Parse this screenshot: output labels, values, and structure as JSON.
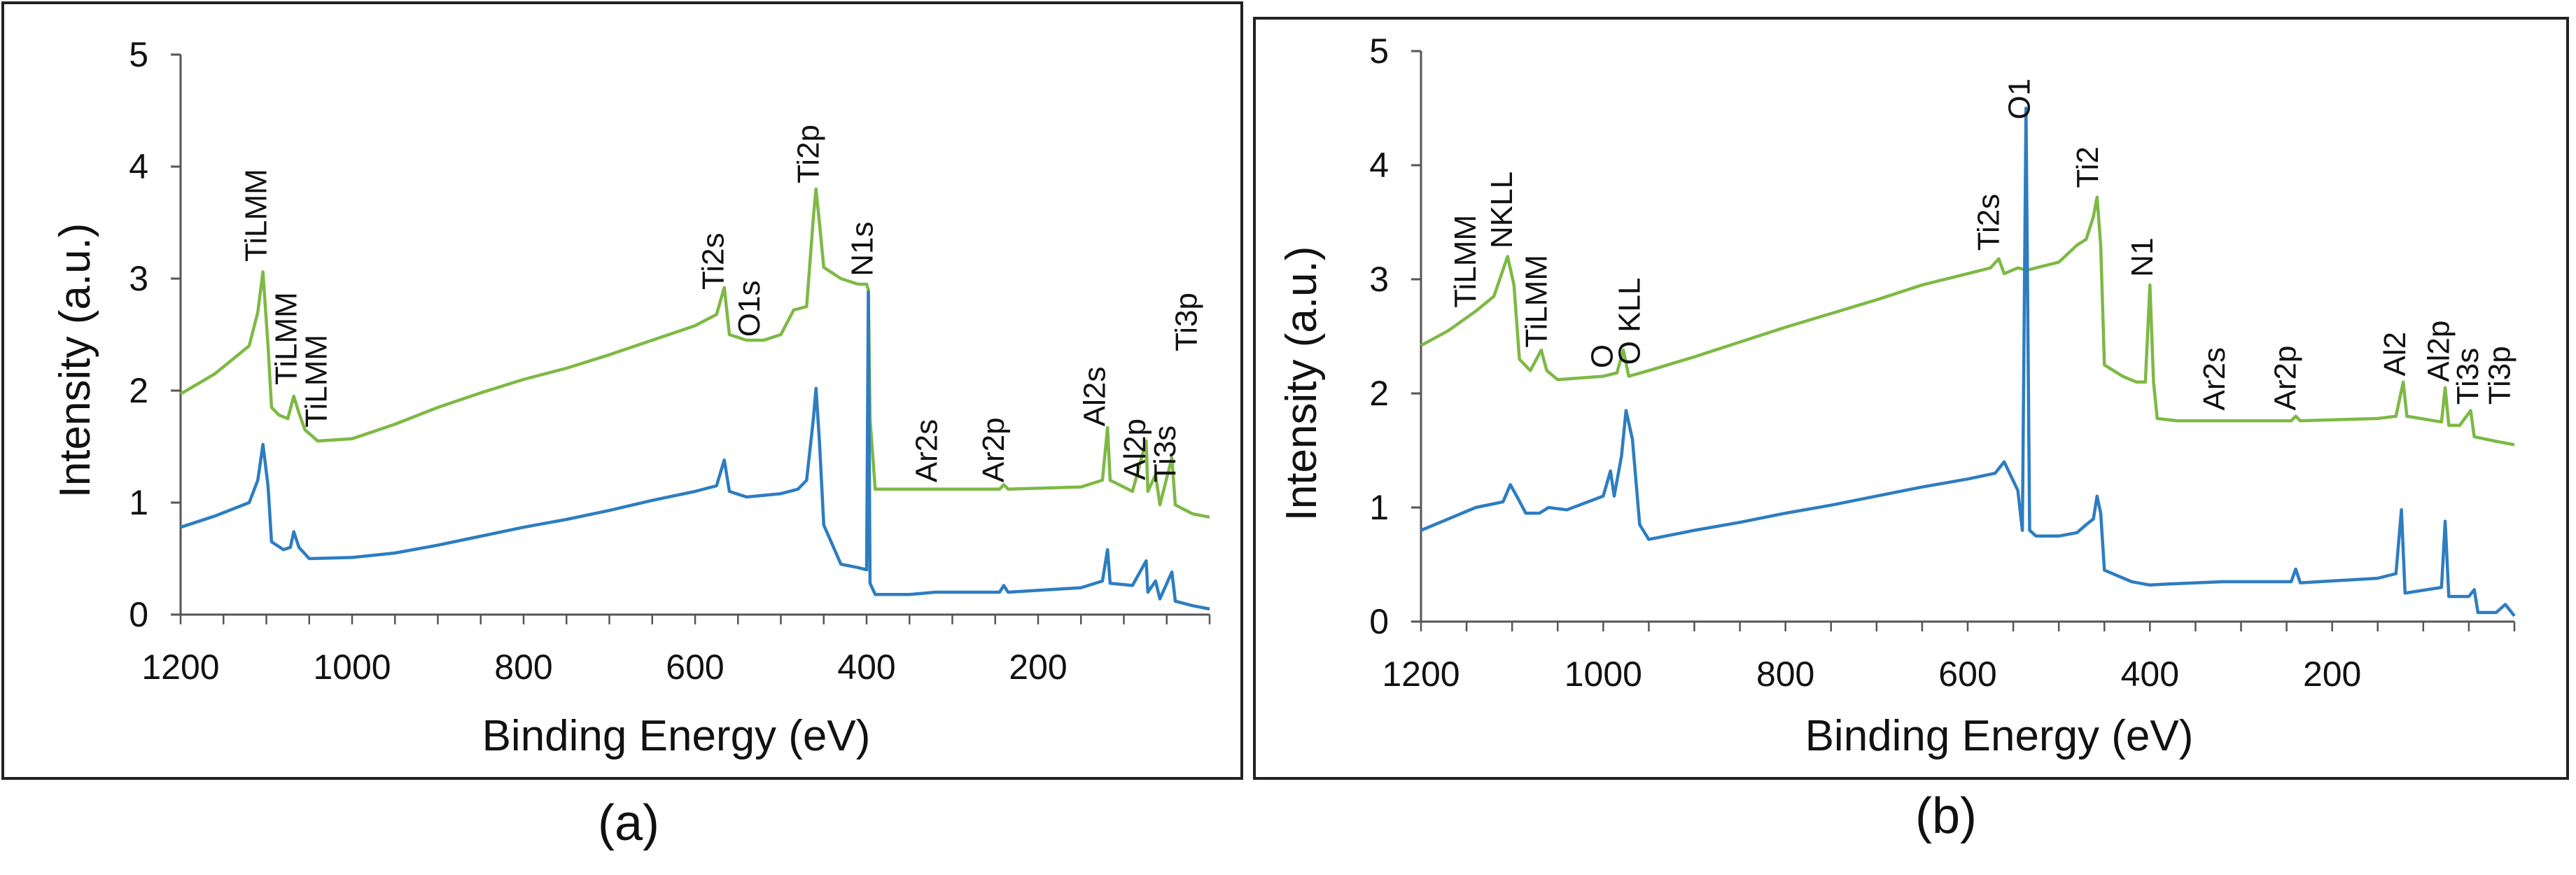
{
  "figure": {
    "captions": [
      "(a)",
      "(b)"
    ]
  },
  "colors": {
    "series_top": "#7DB944",
    "series_bottom": "#2D7DC1",
    "axis": "#555555",
    "frame": "#222222"
  },
  "chart_data": [
    {
      "id": "a",
      "type": "line",
      "title": "",
      "xlabel": "Binding Energy (eV)",
      "ylabel": "Intensity (a.u.)",
      "xlim": [
        1200,
        0
      ],
      "ylim": [
        0,
        5
      ],
      "x_ticks": [
        1200,
        1000,
        800,
        600,
        400,
        200
      ],
      "y_ticks": [
        0,
        1,
        2,
        3,
        4,
        5
      ],
      "grid": false,
      "series": [
        {
          "name": "top",
          "color": "#7DB944",
          "points": [
            [
              1200,
              1.97
            ],
            [
              1160,
              2.15
            ],
            [
              1120,
              2.4
            ],
            [
              1110,
              2.7
            ],
            [
              1104,
              3.06
            ],
            [
              1098,
              2.4
            ],
            [
              1094,
              1.85
            ],
            [
              1085,
              1.78
            ],
            [
              1075,
              1.75
            ],
            [
              1068,
              1.95
            ],
            [
              1062,
              1.8
            ],
            [
              1055,
              1.65
            ],
            [
              1040,
              1.55
            ],
            [
              1000,
              1.57
            ],
            [
              950,
              1.7
            ],
            [
              900,
              1.85
            ],
            [
              850,
              1.98
            ],
            [
              800,
              2.1
            ],
            [
              750,
              2.2
            ],
            [
              700,
              2.32
            ],
            [
              650,
              2.45
            ],
            [
              600,
              2.58
            ],
            [
              575,
              2.68
            ],
            [
              566,
              2.92
            ],
            [
              560,
              2.5
            ],
            [
              540,
              2.45
            ],
            [
              520,
              2.45
            ],
            [
              500,
              2.5
            ],
            [
              485,
              2.72
            ],
            [
              470,
              2.75
            ],
            [
              462,
              3.55
            ],
            [
              459,
              3.8
            ],
            [
              455,
              3.5
            ],
            [
              450,
              3.1
            ],
            [
              430,
              3.0
            ],
            [
              410,
              2.95
            ],
            [
              400,
              2.95
            ],
            [
              398,
              2.9
            ],
            [
              396,
              1.75
            ],
            [
              390,
              1.12
            ],
            [
              370,
              1.12
            ],
            [
              320,
              1.12
            ],
            [
              245,
              1.12
            ],
            [
              240,
              1.16
            ],
            [
              235,
              1.12
            ],
            [
              150,
              1.14
            ],
            [
              125,
              1.2
            ],
            [
              119,
              1.67
            ],
            [
              116,
              1.2
            ],
            [
              90,
              1.1
            ],
            [
              74,
              1.55
            ],
            [
              72,
              1.1
            ],
            [
              63,
              1.25
            ],
            [
              58,
              0.98
            ],
            [
              44,
              1.4
            ],
            [
              40,
              0.98
            ],
            [
              20,
              0.9
            ],
            [
              0,
              0.87
            ]
          ]
        },
        {
          "name": "bottom",
          "color": "#2D7DC1",
          "points": [
            [
              1200,
              0.78
            ],
            [
              1160,
              0.88
            ],
            [
              1120,
              1.0
            ],
            [
              1110,
              1.2
            ],
            [
              1104,
              1.52
            ],
            [
              1098,
              1.15
            ],
            [
              1094,
              0.65
            ],
            [
              1080,
              0.58
            ],
            [
              1072,
              0.6
            ],
            [
              1068,
              0.74
            ],
            [
              1062,
              0.6
            ],
            [
              1050,
              0.5
            ],
            [
              1000,
              0.51
            ],
            [
              950,
              0.55
            ],
            [
              900,
              0.62
            ],
            [
              850,
              0.7
            ],
            [
              800,
              0.78
            ],
            [
              750,
              0.85
            ],
            [
              700,
              0.93
            ],
            [
              650,
              1.02
            ],
            [
              600,
              1.1
            ],
            [
              575,
              1.15
            ],
            [
              566,
              1.38
            ],
            [
              560,
              1.1
            ],
            [
              540,
              1.05
            ],
            [
              500,
              1.08
            ],
            [
              480,
              1.12
            ],
            [
              470,
              1.2
            ],
            [
              462,
              1.75
            ],
            [
              459,
              2.02
            ],
            [
              455,
              1.55
            ],
            [
              450,
              0.8
            ],
            [
              430,
              0.45
            ],
            [
              410,
              0.42
            ],
            [
              400,
              0.4
            ],
            [
              398,
              2.88
            ],
            [
              396,
              0.28
            ],
            [
              390,
              0.18
            ],
            [
              350,
              0.18
            ],
            [
              320,
              0.2
            ],
            [
              245,
              0.2
            ],
            [
              240,
              0.26
            ],
            [
              235,
              0.2
            ],
            [
              150,
              0.24
            ],
            [
              125,
              0.3
            ],
            [
              119,
              0.58
            ],
            [
              116,
              0.28
            ],
            [
              90,
              0.26
            ],
            [
              74,
              0.48
            ],
            [
              72,
              0.2
            ],
            [
              63,
              0.3
            ],
            [
              58,
              0.14
            ],
            [
              44,
              0.38
            ],
            [
              40,
              0.12
            ],
            [
              20,
              0.08
            ],
            [
              0,
              0.05
            ]
          ]
        }
      ],
      "annotations": [
        {
          "text": "TiLMM",
          "x": 1100,
          "y": 3.15
        },
        {
          "text": "TiLMM",
          "x": 1065,
          "y": 2.05
        },
        {
          "text": "TiLMM",
          "x": 1030,
          "y": 1.67
        },
        {
          "text": "Ti2s",
          "x": 567,
          "y": 2.9
        },
        {
          "text": "O1s",
          "x": 525,
          "y": 2.48
        },
        {
          "text": "Ti2p",
          "x": 456,
          "y": 3.85
        },
        {
          "text": "N1s",
          "x": 393,
          "y": 3.02
        },
        {
          "text": "Ar2s",
          "x": 318,
          "y": 1.18
        },
        {
          "text": "Ar2p",
          "x": 240,
          "y": 1.18
        },
        {
          "text": "Al2s",
          "x": 122,
          "y": 1.68
        },
        {
          "text": "Al2p",
          "x": 75,
          "y": 1.2
        },
        {
          "text": "Ti3s",
          "x": 40,
          "y": 1.18
        },
        {
          "text": "Ti3p",
          "x": 15,
          "y": 2.35
        }
      ]
    },
    {
      "id": "b",
      "type": "line",
      "title": "",
      "xlabel": "Binding Energy (eV)",
      "ylabel": "Intensity (a.u.)",
      "xlim": [
        1200,
        0
      ],
      "ylim": [
        0,
        5
      ],
      "x_ticks": [
        1200,
        1000,
        800,
        600,
        400,
        200
      ],
      "y_ticks": [
        0,
        1,
        2,
        3,
        4,
        5
      ],
      "grid": false,
      "series": [
        {
          "name": "top",
          "color": "#7DB944",
          "points": [
            [
              1200,
              2.42
            ],
            [
              1170,
              2.55
            ],
            [
              1140,
              2.72
            ],
            [
              1120,
              2.85
            ],
            [
              1105,
              3.2
            ],
            [
              1098,
              2.95
            ],
            [
              1092,
              2.3
            ],
            [
              1080,
              2.2
            ],
            [
              1068,
              2.38
            ],
            [
              1062,
              2.2
            ],
            [
              1050,
              2.12
            ],
            [
              1000,
              2.15
            ],
            [
              985,
              2.18
            ],
            [
              978,
              2.38
            ],
            [
              972,
              2.15
            ],
            [
              950,
              2.2
            ],
            [
              900,
              2.32
            ],
            [
              850,
              2.45
            ],
            [
              800,
              2.58
            ],
            [
              750,
              2.7
            ],
            [
              700,
              2.82
            ],
            [
              650,
              2.95
            ],
            [
              600,
              3.05
            ],
            [
              575,
              3.1
            ],
            [
              566,
              3.18
            ],
            [
              560,
              3.05
            ],
            [
              545,
              3.1
            ],
            [
              535,
              3.08
            ],
            [
              500,
              3.15
            ],
            [
              480,
              3.3
            ],
            [
              470,
              3.35
            ],
            [
              462,
              3.55
            ],
            [
              458,
              3.72
            ],
            [
              454,
              3.3
            ],
            [
              450,
              2.25
            ],
            [
              430,
              2.15
            ],
            [
              415,
              2.1
            ],
            [
              405,
              2.1
            ],
            [
              400,
              2.95
            ],
            [
              396,
              2.1
            ],
            [
              392,
              1.78
            ],
            [
              370,
              1.76
            ],
            [
              320,
              1.76
            ],
            [
              245,
              1.76
            ],
            [
              240,
              1.8
            ],
            [
              235,
              1.76
            ],
            [
              150,
              1.78
            ],
            [
              130,
              1.8
            ],
            [
              122,
              2.1
            ],
            [
              118,
              1.8
            ],
            [
              80,
              1.75
            ],
            [
              76,
              2.05
            ],
            [
              72,
              1.72
            ],
            [
              60,
              1.72
            ],
            [
              48,
              1.85
            ],
            [
              44,
              1.62
            ],
            [
              20,
              1.58
            ],
            [
              0,
              1.55
            ]
          ]
        },
        {
          "name": "bottom",
          "color": "#2D7DC1",
          "points": [
            [
              1200,
              0.8
            ],
            [
              1170,
              0.9
            ],
            [
              1140,
              1.0
            ],
            [
              1110,
              1.05
            ],
            [
              1102,
              1.2
            ],
            [
              1095,
              1.1
            ],
            [
              1085,
              0.95
            ],
            [
              1070,
              0.95
            ],
            [
              1060,
              1.0
            ],
            [
              1040,
              0.98
            ],
            [
              1000,
              1.1
            ],
            [
              992,
              1.32
            ],
            [
              988,
              1.1
            ],
            [
              980,
              1.45
            ],
            [
              975,
              1.85
            ],
            [
              968,
              1.6
            ],
            [
              960,
              0.85
            ],
            [
              950,
              0.72
            ],
            [
              900,
              0.8
            ],
            [
              850,
              0.87
            ],
            [
              800,
              0.95
            ],
            [
              750,
              1.02
            ],
            [
              700,
              1.1
            ],
            [
              650,
              1.18
            ],
            [
              600,
              1.25
            ],
            [
              570,
              1.3
            ],
            [
              560,
              1.4
            ],
            [
              545,
              1.15
            ],
            [
              540,
              0.8
            ],
            [
              536,
              4.5
            ],
            [
              532,
              0.8
            ],
            [
              525,
              0.75
            ],
            [
              500,
              0.75
            ],
            [
              480,
              0.78
            ],
            [
              470,
              0.85
            ],
            [
              462,
              0.9
            ],
            [
              458,
              1.1
            ],
            [
              454,
              0.95
            ],
            [
              450,
              0.45
            ],
            [
              420,
              0.35
            ],
            [
              400,
              0.32
            ],
            [
              380,
              0.33
            ],
            [
              320,
              0.35
            ],
            [
              245,
              0.35
            ],
            [
              240,
              0.46
            ],
            [
              235,
              0.34
            ],
            [
              150,
              0.38
            ],
            [
              130,
              0.42
            ],
            [
              124,
              0.98
            ],
            [
              120,
              0.25
            ],
            [
              80,
              0.3
            ],
            [
              76,
              0.88
            ],
            [
              72,
              0.22
            ],
            [
              50,
              0.22
            ],
            [
              44,
              0.28
            ],
            [
              40,
              0.08
            ],
            [
              20,
              0.08
            ],
            [
              10,
              0.15
            ],
            [
              0,
              0.05
            ]
          ]
        }
      ],
      "annotations": [
        {
          "text": "TiLMM",
          "x": 1140,
          "y": 2.75
        },
        {
          "text": "NKLL",
          "x": 1100,
          "y": 3.27
        },
        {
          "text": "TiLMM",
          "x": 1062,
          "y": 2.4
        },
        {
          "text": "O",
          "x": 990,
          "y": 2.22
        },
        {
          "text": "O KLL",
          "x": 960,
          "y": 2.25
        },
        {
          "text": "Ti2s",
          "x": 566,
          "y": 3.25
        },
        {
          "text": "O1",
          "x": 532,
          "y": 4.4
        },
        {
          "text": "Ti2",
          "x": 457,
          "y": 3.8
        },
        {
          "text": "N1",
          "x": 397,
          "y": 3.02
        },
        {
          "text": "Ar2s",
          "x": 318,
          "y": 1.85
        },
        {
          "text": "Ar2p",
          "x": 240,
          "y": 1.85
        },
        {
          "text": "Al2",
          "x": 120,
          "y": 2.15
        },
        {
          "text": "Al2p",
          "x": 72,
          "y": 2.1
        },
        {
          "text": "Ti3s",
          "x": 40,
          "y": 1.9
        },
        {
          "text": "Ti3p",
          "x": 5,
          "y": 1.9
        }
      ]
    }
  ]
}
